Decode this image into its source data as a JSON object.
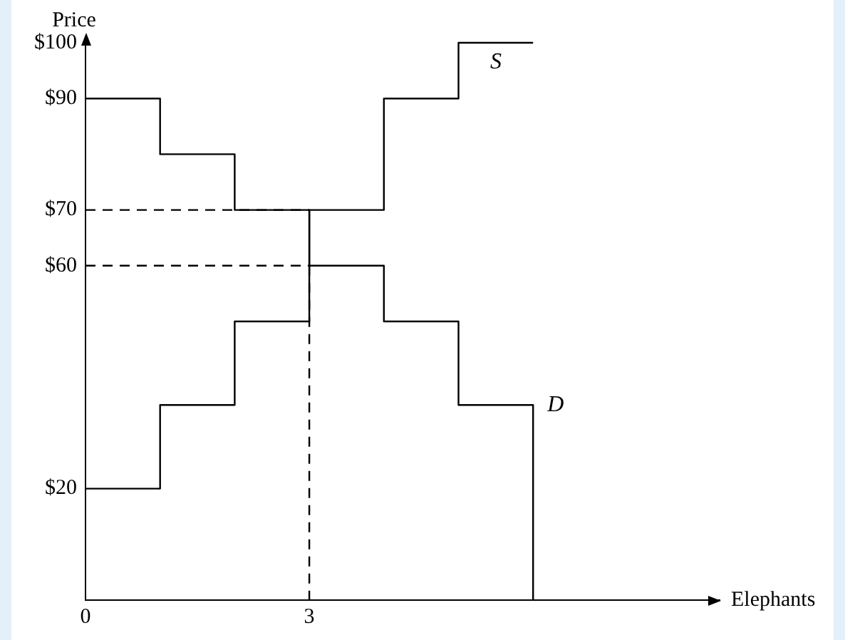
{
  "chart_data": {
    "type": "step",
    "xlabel": "Elephants",
    "ylabel": "Price",
    "series": [
      {
        "name": "S",
        "color": "#000000",
        "x": [
          0,
          1,
          2,
          3,
          4,
          5,
          6
        ],
        "values": [
          20,
          35,
          50,
          70,
          90,
          100,
          100
        ]
      },
      {
        "name": "D",
        "color": "#000000",
        "x": [
          0,
          1,
          2,
          3,
          4,
          5,
          6,
          6
        ],
        "values": [
          90,
          80,
          70,
          60,
          50,
          35,
          35,
          0
        ]
      },
      {
        "line_style": "dashed",
        "color": "#000000",
        "x": [
          0,
          3
        ],
        "values": [
          70,
          70
        ]
      },
      {
        "line_style": "dashed",
        "color": "#000000",
        "x": [
          0,
          3
        ],
        "values": [
          60,
          60
        ]
      },
      {
        "line_style": "dashed",
        "color": "#000000",
        "x": [
          3,
          3
        ],
        "values": [
          60,
          0
        ]
      }
    ],
    "xlim": [
      0,
      8.5
    ],
    "ylim": [
      0,
      100
    ],
    "xticks": [
      0,
      3
    ],
    "yticks": [
      {
        "value": 20,
        "label": "$20"
      },
      {
        "value": 60,
        "label": "$60"
      },
      {
        "value": 70,
        "label": "$70"
      },
      {
        "value": 90,
        "label": "$90"
      },
      {
        "value": 100,
        "label": "$100"
      }
    ],
    "grid": false,
    "legend": false,
    "marker": "none"
  }
}
